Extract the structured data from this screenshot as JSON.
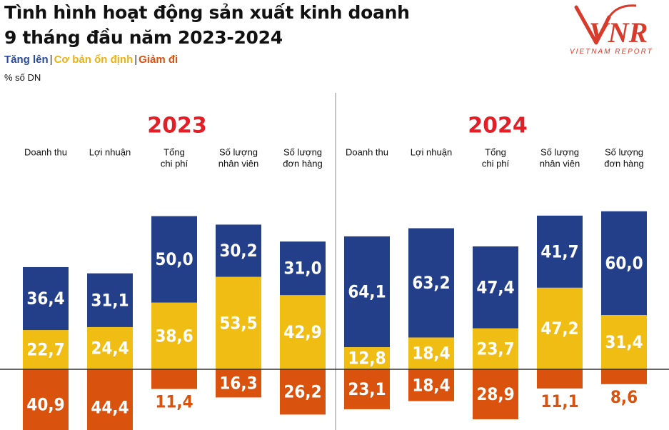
{
  "title": {
    "line1": "Tình hình hoạt động sản xuất kinh doanh",
    "line2": "9 tháng đầu năm 2023-2024"
  },
  "legend": {
    "increase": "Tăng lên",
    "stable": "Cơ bản ổn định",
    "decrease": "Giảm đi",
    "separator": "|"
  },
  "unit_label": "% số DN",
  "logo": {
    "mark": "VNR",
    "subtitle": "VIETNAM REPORT"
  },
  "colors": {
    "increase": "#243f8a",
    "stable": "#f0bd14",
    "decrease": "#d9520e",
    "year_label": "#e31e27",
    "legend_increase_text": "#2a4a9e",
    "legend_stable_text": "#e8b312",
    "legend_decrease_text": "#d9520e",
    "logo": "#d83a2b"
  },
  "chart_data": {
    "type": "bar",
    "layout": "diverging stacked bar",
    "series_names": [
      "Tăng lên",
      "Cơ bản ổn định",
      "Giảm đi"
    ],
    "groups": [
      {
        "year": "2023",
        "categories": [
          "Doanh thu",
          "Lợi nhuận",
          "Tổng\nchi phí",
          "Số lượng\nnhân viên",
          "Số lượng\nđơn hàng"
        ],
        "increase": [
          36.4,
          31.1,
          50.0,
          30.2,
          31.0
        ],
        "stable": [
          22.7,
          24.4,
          38.6,
          53.5,
          42.9
        ],
        "decrease": [
          40.9,
          44.4,
          11.4,
          16.3,
          26.2
        ],
        "increase_labels": [
          "36,4",
          "31,1",
          "50,0",
          "30,2",
          "31,0"
        ],
        "stable_labels": [
          "22,7",
          "24,4",
          "38,6",
          "53,5",
          "42,9"
        ],
        "decrease_labels": [
          "40,9",
          "44,4",
          "11,4",
          "16,3",
          "26,2"
        ]
      },
      {
        "year": "2024",
        "categories": [
          "Doanh thu",
          "Lợi nhuận",
          "Tổng\nchi phí",
          "Số lượng\nnhân viên",
          "Số lượng\nđơn hàng"
        ],
        "increase": [
          64.1,
          63.2,
          47.4,
          41.7,
          60.0
        ],
        "stable": [
          12.8,
          18.4,
          23.7,
          47.2,
          31.4
        ],
        "decrease": [
          23.1,
          18.4,
          28.9,
          11.1,
          8.6
        ],
        "increase_labels": [
          "64,1",
          "63,2",
          "47,4",
          "41,7",
          "60,0"
        ],
        "stable_labels": [
          "12,8",
          "18,4",
          "23,7",
          "47,2",
          "31,4"
        ],
        "decrease_labels": [
          "23,1",
          "18,4",
          "28,9",
          "11,1",
          "8,6"
        ]
      }
    ],
    "baseline": 0,
    "gridlines": false
  }
}
